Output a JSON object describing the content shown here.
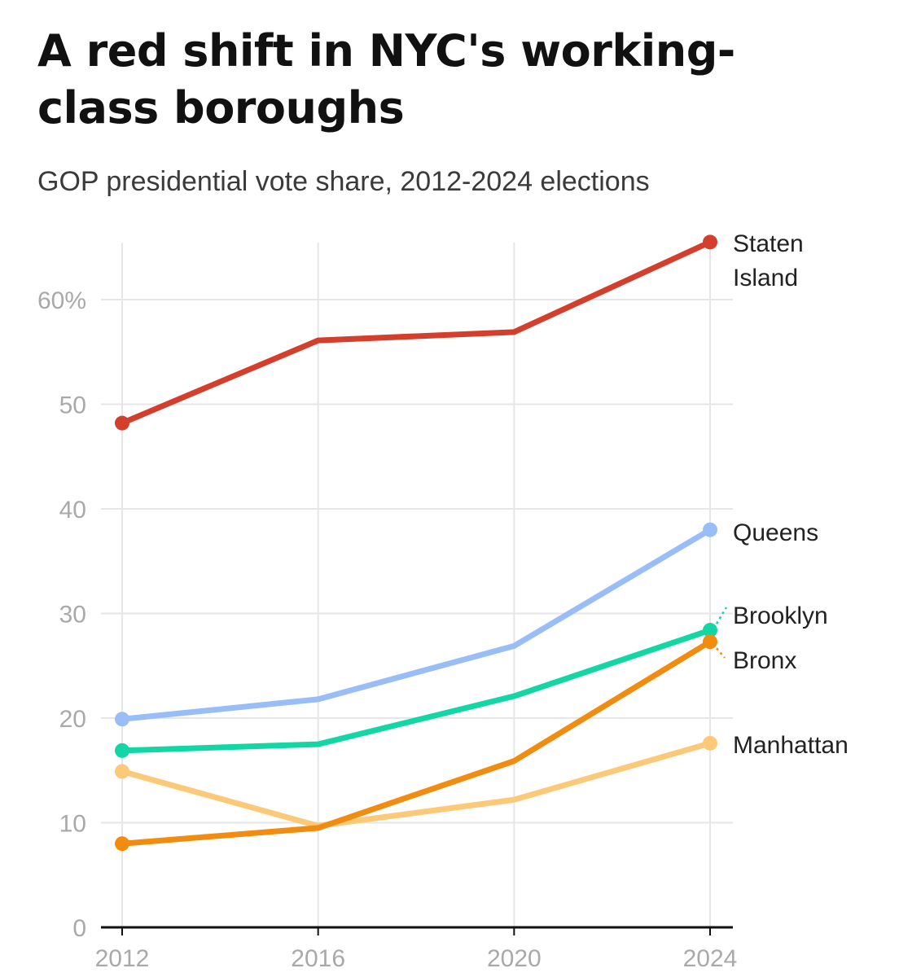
{
  "title": "A red shift in NYC's working-class boroughs",
  "title_lines": [
    "A red shift in NYC's working-",
    "class boroughs"
  ],
  "subtitle": "GOP presidential vote share, 2012-2024 elections",
  "chart_data": {
    "type": "line",
    "x": [
      2012,
      2016,
      2020,
      2024
    ],
    "x_tick_labels": [
      "2012",
      "2016",
      "2020",
      "2024"
    ],
    "y_tick_labels": [
      "0",
      "10",
      "20",
      "30",
      "40",
      "50",
      "60%"
    ],
    "y_ticks": [
      0,
      10,
      20,
      30,
      40,
      50,
      60
    ],
    "ylim": [
      0,
      65.5
    ],
    "grid": true,
    "series": [
      {
        "name": "Staten Island",
        "label_lines": [
          "Staten",
          "Island"
        ],
        "color": "#d33f2c",
        "values": [
          48.2,
          56.1,
          56.9,
          65.5
        ]
      },
      {
        "name": "Queens",
        "label_lines": [
          "Queens"
        ],
        "color": "#98bdf7",
        "values": [
          19.9,
          21.8,
          26.9,
          38.0
        ]
      },
      {
        "name": "Brooklyn",
        "label_lines": [
          "Brooklyn"
        ],
        "color": "#12d6a3",
        "values": [
          16.9,
          17.5,
          22.1,
          28.4
        ]
      },
      {
        "name": "Bronx",
        "label_lines": [
          "Bronx"
        ],
        "color": "#f28c10",
        "values": [
          8.0,
          9.5,
          15.9,
          27.3
        ]
      },
      {
        "name": "Manhattan",
        "label_lines": [
          "Manhattan"
        ],
        "color": "#fcc978",
        "values": [
          14.9,
          9.7,
          12.2,
          17.6
        ]
      }
    ]
  }
}
